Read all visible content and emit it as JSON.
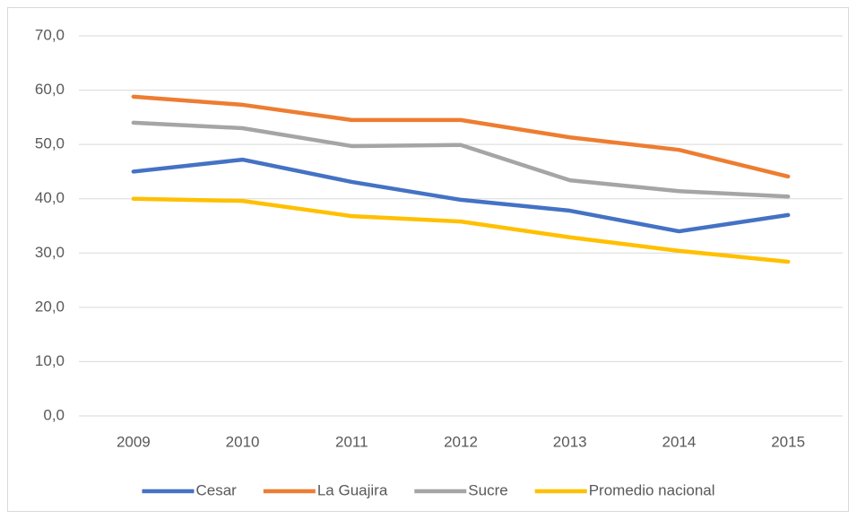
{
  "chart_data": {
    "type": "line",
    "categories": [
      "2009",
      "2010",
      "2011",
      "2012",
      "2013",
      "2014",
      "2015"
    ],
    "series": [
      {
        "name": "Cesar",
        "color": "#4472c4",
        "values": [
          45.0,
          47.2,
          43.1,
          39.8,
          37.8,
          34.0,
          37.0
        ]
      },
      {
        "name": "La Guajira",
        "color": "#ed7d31",
        "values": [
          58.8,
          57.3,
          54.5,
          54.5,
          51.3,
          49.0,
          44.1
        ]
      },
      {
        "name": "Sucre",
        "color": "#a5a5a5",
        "values": [
          54.0,
          53.0,
          49.7,
          49.9,
          43.4,
          41.4,
          40.4
        ]
      },
      {
        "name": "Promedio nacional",
        "color": "#ffc000",
        "values": [
          40.0,
          39.6,
          36.8,
          35.8,
          32.9,
          30.4,
          28.4
        ]
      }
    ],
    "ylim": [
      0,
      70
    ],
    "yticks": [
      {
        "value": 0,
        "label": "0,0"
      },
      {
        "value": 10,
        "label": "10,0"
      },
      {
        "value": 20,
        "label": "20,0"
      },
      {
        "value": 30,
        "label": "30,0"
      },
      {
        "value": 40,
        "label": "40,0"
      },
      {
        "value": 50,
        "label": "50,0"
      },
      {
        "value": 60,
        "label": "60,0"
      },
      {
        "value": 70,
        "label": "70,0"
      }
    ],
    "grid": true,
    "legend": "bottom"
  }
}
